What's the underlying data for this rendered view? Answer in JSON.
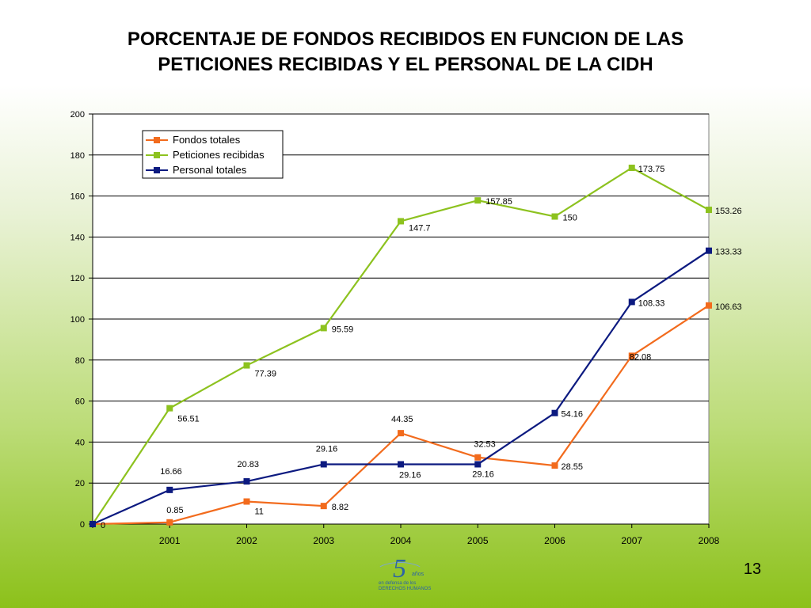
{
  "slide": {
    "title_line1": "PORCENTAJE DE FONDOS RECIBIDOS EN FUNCION DE LAS",
    "title_line2": "PETICIONES RECIBIDAS Y EL PERSONAL DE LA CIDH",
    "page_number": "13"
  },
  "logo": {
    "number": "5",
    "years_text": "años",
    "line1": "en defensa de los",
    "line2": "DERECHOS HUMANOS"
  },
  "chart_data": {
    "type": "line",
    "title": "PORCENTAJE DE FONDOS RECIBIDOS EN FUNCION DE LAS PETICIONES RECIBIDAS Y EL PERSONAL DE LA CIDH",
    "x_labels": [
      "",
      "2001",
      "2002",
      "2003",
      "2004",
      "2005",
      "2006",
      "2007",
      "2008"
    ],
    "ylim": [
      0,
      200
    ],
    "y_ticks": [
      0,
      20,
      40,
      60,
      80,
      100,
      120,
      140,
      160,
      180,
      200
    ],
    "grid": true,
    "legend_position": "top-left",
    "series": [
      {
        "name": "Fondos totales",
        "color": "#f26b1d",
        "values": [
          0,
          0.85,
          11,
          8.82,
          44.35,
          32.53,
          28.55,
          82.08,
          106.63
        ],
        "labels": [
          "",
          "0.85",
          "11",
          "8.82",
          "44.35",
          "32.53",
          "28.55",
          "82.08",
          "106.63"
        ]
      },
      {
        "name": "Peticiones recibidas",
        "color": "#8dc21f",
        "values": [
          0,
          56.51,
          77.39,
          95.59,
          147.7,
          157.85,
          150,
          173.75,
          153.26
        ],
        "labels": [
          "",
          "56.51",
          "77.39",
          "95.59",
          "147.7",
          "157.85",
          "150",
          "173.75",
          "153.26"
        ]
      },
      {
        "name": "Personal totales",
        "color": "#0c1a80",
        "values": [
          0,
          16.66,
          20.83,
          29.16,
          29.16,
          29.16,
          54.16,
          108.33,
          133.33
        ],
        "labels": [
          "0",
          "16.66",
          "20.83",
          "29.16",
          "29.16",
          "29.16",
          "54.16",
          "108.33",
          "133.33"
        ]
      }
    ]
  }
}
